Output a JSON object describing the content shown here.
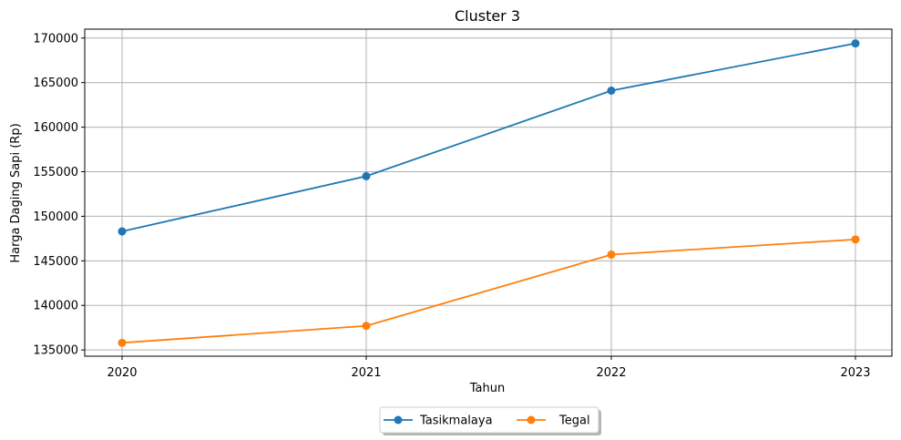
{
  "chart_data": {
    "type": "line",
    "title": "Cluster 3",
    "xlabel": "Tahun",
    "ylabel": "Harga Daging Sapi (Rp)",
    "x": [
      2020,
      2021,
      2022,
      2023
    ],
    "x_tick_labels": [
      "2020",
      "2021",
      "2022",
      "2023"
    ],
    "ylim": [
      134300,
      171000
    ],
    "y_ticks": [
      135000,
      140000,
      145000,
      150000,
      155000,
      160000,
      165000,
      170000
    ],
    "y_tick_labels": [
      "135000",
      "140000",
      "145000",
      "150000",
      "155000",
      "160000",
      "165000",
      "170000"
    ],
    "grid": true,
    "legend_position": "bottom-center",
    "series": [
      {
        "name": "Tasikmalaya",
        "color": "#1f77b4",
        "marker": "circle",
        "values": [
          148300,
          154500,
          164100,
          169400
        ]
      },
      {
        "name": "Tegal",
        "color": "#ff7f0e",
        "marker": "circle",
        "values": [
          135800,
          137700,
          145700,
          147400
        ]
      }
    ]
  }
}
